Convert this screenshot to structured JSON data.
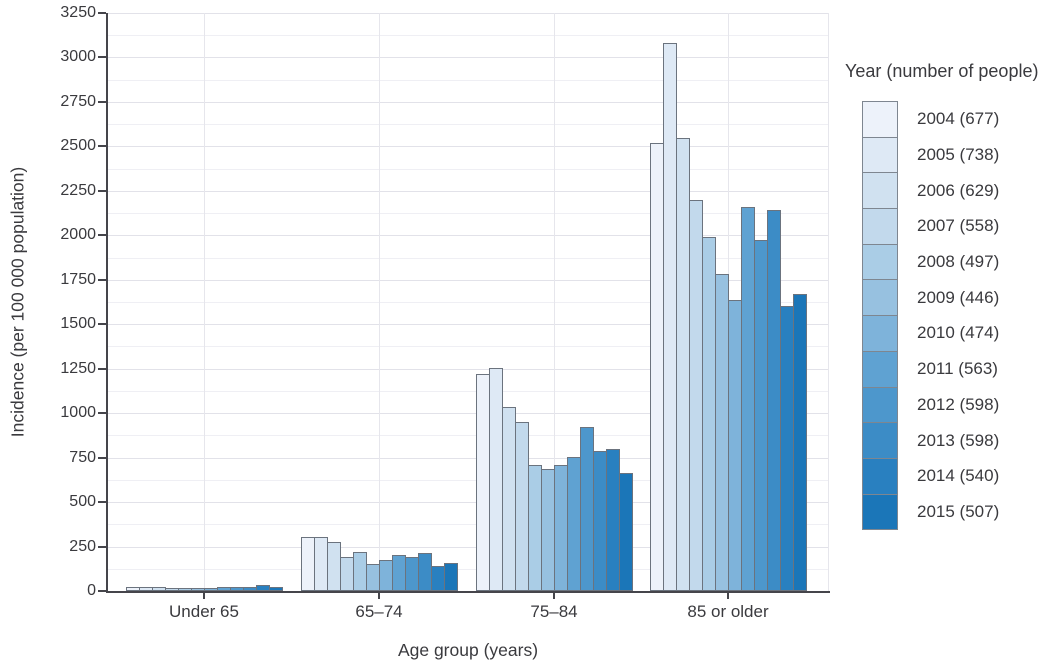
{
  "chart_data": {
    "type": "bar",
    "title": "",
    "xlabel": "Age group (years)",
    "ylabel": "Incidence (per 100 000 population)",
    "categories": [
      "Under 65",
      "65–74",
      "75–84",
      "85 or older"
    ],
    "ylim": [
      0,
      3250
    ],
    "ytick_step": 250,
    "minor_gridline_step": 125,
    "grid": true,
    "legend": {
      "title": "Year (number of people)",
      "position": "right"
    },
    "series": [
      {
        "name": "2004 (677)",
        "year": 2004,
        "people": 677,
        "color": "#edf2fa",
        "values": [
          24,
          305,
          1220,
          2520
        ]
      },
      {
        "name": "2005 (738)",
        "year": 2005,
        "people": 738,
        "color": "#dee9f5",
        "values": [
          22,
          303,
          1255,
          3080
        ]
      },
      {
        "name": "2006 (629)",
        "year": 2006,
        "people": 629,
        "color": "#d0e1f0",
        "values": [
          20,
          277,
          1035,
          2545
        ]
      },
      {
        "name": "2007 (558)",
        "year": 2007,
        "people": 558,
        "color": "#c2d9ec",
        "values": [
          18,
          192,
          950,
          2200
        ]
      },
      {
        "name": "2008 (497)",
        "year": 2008,
        "people": 497,
        "color": "#aacde6",
        "values": [
          18,
          220,
          710,
          1990
        ]
      },
      {
        "name": "2009 (446)",
        "year": 2009,
        "people": 446,
        "color": "#97c1e0",
        "values": [
          16,
          150,
          685,
          1785
        ]
      },
      {
        "name": "2010 (474)",
        "year": 2010,
        "people": 474,
        "color": "#7eb3da",
        "values": [
          18,
          175,
          710,
          1635
        ]
      },
      {
        "name": "2011 (563)",
        "year": 2011,
        "people": 563,
        "color": "#5fa2d2",
        "values": [
          20,
          205,
          755,
          2160
        ]
      },
      {
        "name": "2012 (598)",
        "year": 2012,
        "people": 598,
        "color": "#4d97cc",
        "values": [
          21,
          190,
          920,
          1975
        ]
      },
      {
        "name": "2013 (598)",
        "year": 2013,
        "people": 598,
        "color": "#3c8cc6",
        "values": [
          21,
          212,
          790,
          2145
        ]
      },
      {
        "name": "2014 (540)",
        "year": 2014,
        "people": 540,
        "color": "#2980c0",
        "values": [
          34,
          142,
          800,
          1600
        ]
      },
      {
        "name": "2015 (507)",
        "year": 2015,
        "people": 507,
        "color": "#1b76b8",
        "values": [
          20,
          158,
          665,
          1670
        ]
      }
    ]
  }
}
